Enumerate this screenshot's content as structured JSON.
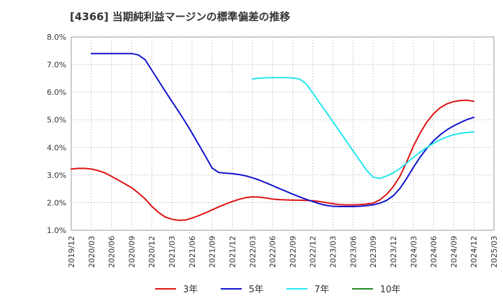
{
  "chart_data": {
    "type": "line",
    "title": "[4366]  当期純利益マージンの標準偏差の推移",
    "xlabel": "",
    "ylabel": "",
    "ylim": [
      1.0,
      8.0
    ],
    "y_ticks": [
      "1.0%",
      "2.0%",
      "3.0%",
      "4.0%",
      "5.0%",
      "6.0%",
      "7.0%",
      "8.0%"
    ],
    "x_ticks": [
      "2019/12",
      "2020/03",
      "2020/06",
      "2020/09",
      "2020/12",
      "2021/03",
      "2021/06",
      "2021/09",
      "2021/12",
      "2022/03",
      "2022/06",
      "2022/09",
      "2022/12",
      "2023/03",
      "2023/06",
      "2023/09",
      "2023/12",
      "2024/03",
      "2024/06",
      "2024/09",
      "2024/12",
      "2025/03"
    ],
    "grid": true,
    "legend_position": "bottom",
    "series": [
      {
        "name": "3年",
        "color": "#dd1111",
        "points": [
          [
            "2019/12",
            3.22
          ],
          [
            "2020/01",
            3.24
          ],
          [
            "2020/02",
            3.24
          ],
          [
            "2020/03",
            3.22
          ],
          [
            "2020/04",
            3.16
          ],
          [
            "2020/05",
            3.08
          ],
          [
            "2020/06",
            2.95
          ],
          [
            "2020/07",
            2.82
          ],
          [
            "2020/08",
            2.68
          ],
          [
            "2020/09",
            2.54
          ],
          [
            "2020/10",
            2.35
          ],
          [
            "2020/11",
            2.14
          ],
          [
            "2020/12",
            1.87
          ],
          [
            "2021/01",
            1.65
          ],
          [
            "2021/02",
            1.48
          ],
          [
            "2021/03",
            1.4
          ],
          [
            "2021/04",
            1.36
          ],
          [
            "2021/05",
            1.37
          ],
          [
            "2021/06",
            1.44
          ],
          [
            "2021/07",
            1.53
          ],
          [
            "2021/08",
            1.63
          ],
          [
            "2021/09",
            1.74
          ],
          [
            "2021/10",
            1.85
          ],
          [
            "2021/11",
            1.95
          ],
          [
            "2021/12",
            2.04
          ],
          [
            "2022/01",
            2.12
          ],
          [
            "2022/02",
            2.18
          ],
          [
            "2022/03",
            2.21
          ],
          [
            "2022/04",
            2.2
          ],
          [
            "2022/05",
            2.17
          ],
          [
            "2022/06",
            2.13
          ],
          [
            "2022/07",
            2.11
          ],
          [
            "2022/08",
            2.1
          ],
          [
            "2022/09",
            2.09
          ],
          [
            "2022/10",
            2.09
          ],
          [
            "2022/11",
            2.08
          ],
          [
            "2022/12",
            2.07
          ],
          [
            "2023/01",
            2.04
          ],
          [
            "2023/02",
            2.0
          ],
          [
            "2023/03",
            1.96
          ],
          [
            "2023/04",
            1.93
          ],
          [
            "2023/05",
            1.92
          ],
          [
            "2023/06",
            1.92
          ],
          [
            "2023/07",
            1.93
          ],
          [
            "2023/08",
            1.95
          ],
          [
            "2023/09",
            1.98
          ],
          [
            "2023/10",
            2.1
          ],
          [
            "2023/11",
            2.3
          ],
          [
            "2023/12",
            2.58
          ],
          [
            "2024/01",
            2.96
          ],
          [
            "2024/02",
            3.48
          ],
          [
            "2024/03",
            4.05
          ],
          [
            "2024/04",
            4.52
          ],
          [
            "2024/05",
            4.92
          ],
          [
            "2024/06",
            5.22
          ],
          [
            "2024/07",
            5.44
          ],
          [
            "2024/08",
            5.58
          ],
          [
            "2024/09",
            5.66
          ],
          [
            "2024/10",
            5.7
          ],
          [
            "2024/11",
            5.71
          ],
          [
            "2024/12",
            5.67
          ]
        ]
      },
      {
        "name": "5年",
        "color": "#1111cc",
        "points": [
          [
            "2020/03",
            7.4
          ],
          [
            "2020/04",
            7.4
          ],
          [
            "2020/05",
            7.4
          ],
          [
            "2020/06",
            7.4
          ],
          [
            "2020/07",
            7.4
          ],
          [
            "2020/08",
            7.4
          ],
          [
            "2020/09",
            7.4
          ],
          [
            "2020/10",
            7.35
          ],
          [
            "2020/11",
            7.18
          ],
          [
            "2020/12",
            6.8
          ],
          [
            "2021/01",
            6.42
          ],
          [
            "2021/02",
            6.04
          ],
          [
            "2021/03",
            5.67
          ],
          [
            "2021/04",
            5.3
          ],
          [
            "2021/05",
            4.92
          ],
          [
            "2021/06",
            4.52
          ],
          [
            "2021/07",
            4.1
          ],
          [
            "2021/08",
            3.68
          ],
          [
            "2021/09",
            3.25
          ],
          [
            "2021/10",
            3.09
          ],
          [
            "2021/11",
            3.07
          ],
          [
            "2021/12",
            3.05
          ],
          [
            "2022/01",
            3.02
          ],
          [
            "2022/02",
            2.97
          ],
          [
            "2022/03",
            2.9
          ],
          [
            "2022/04",
            2.82
          ],
          [
            "2022/05",
            2.72
          ],
          [
            "2022/06",
            2.62
          ],
          [
            "2022/07",
            2.51
          ],
          [
            "2022/08",
            2.41
          ],
          [
            "2022/09",
            2.31
          ],
          [
            "2022/10",
            2.21
          ],
          [
            "2022/11",
            2.12
          ],
          [
            "2022/12",
            2.04
          ],
          [
            "2023/01",
            1.96
          ],
          [
            "2023/02",
            1.9
          ],
          [
            "2023/03",
            1.87
          ],
          [
            "2023/04",
            1.86
          ],
          [
            "2023/05",
            1.86
          ],
          [
            "2023/06",
            1.86
          ],
          [
            "2023/07",
            1.87
          ],
          [
            "2023/08",
            1.89
          ],
          [
            "2023/09",
            1.92
          ],
          [
            "2023/10",
            1.98
          ],
          [
            "2023/11",
            2.08
          ],
          [
            "2023/12",
            2.25
          ],
          [
            "2024/01",
            2.52
          ],
          [
            "2024/02",
            2.88
          ],
          [
            "2024/03",
            3.28
          ],
          [
            "2024/04",
            3.65
          ],
          [
            "2024/05",
            3.97
          ],
          [
            "2024/06",
            4.24
          ],
          [
            "2024/07",
            4.46
          ],
          [
            "2024/08",
            4.64
          ],
          [
            "2024/09",
            4.78
          ],
          [
            "2024/10",
            4.9
          ],
          [
            "2024/11",
            5.01
          ],
          [
            "2024/12",
            5.09
          ]
        ]
      },
      {
        "name": "7年",
        "color": "#22e5ee",
        "points": [
          [
            "2022/03",
            6.48
          ],
          [
            "2022/04",
            6.51
          ],
          [
            "2022/05",
            6.52
          ],
          [
            "2022/06",
            6.53
          ],
          [
            "2022/07",
            6.53
          ],
          [
            "2022/08",
            6.53
          ],
          [
            "2022/09",
            6.52
          ],
          [
            "2022/10",
            6.48
          ],
          [
            "2022/11",
            6.31
          ],
          [
            "2022/12",
            5.97
          ],
          [
            "2023/01",
            5.62
          ],
          [
            "2023/02",
            5.28
          ],
          [
            "2023/03",
            4.93
          ],
          [
            "2023/04",
            4.58
          ],
          [
            "2023/05",
            4.23
          ],
          [
            "2023/06",
            3.88
          ],
          [
            "2023/07",
            3.53
          ],
          [
            "2023/08",
            3.18
          ],
          [
            "2023/09",
            2.92
          ],
          [
            "2023/10",
            2.88
          ],
          [
            "2023/11",
            2.96
          ],
          [
            "2023/12",
            3.08
          ],
          [
            "2024/01",
            3.24
          ],
          [
            "2024/02",
            3.43
          ],
          [
            "2024/03",
            3.64
          ],
          [
            "2024/04",
            3.83
          ],
          [
            "2024/05",
            4.0
          ],
          [
            "2024/06",
            4.15
          ],
          [
            "2024/07",
            4.28
          ],
          [
            "2024/08",
            4.38
          ],
          [
            "2024/09",
            4.46
          ],
          [
            "2024/10",
            4.51
          ],
          [
            "2024/11",
            4.54
          ],
          [
            "2024/12",
            4.56
          ]
        ]
      },
      {
        "name": "10年",
        "color": "#228822",
        "points": []
      }
    ]
  }
}
